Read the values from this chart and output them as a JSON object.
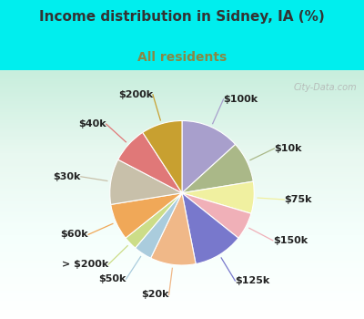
{
  "title": "Income distribution in Sidney, IA (%)",
  "subtitle": "All residents",
  "title_color": "#333333",
  "subtitle_color": "#888844",
  "background_cyan": "#00EEEE",
  "background_pie": "#d8f0e8",
  "watermark": "City-Data.com",
  "slices": [
    {
      "label": "$100k",
      "value": 13,
      "color": "#a89fcc"
    },
    {
      "label": "$10k",
      "value": 9,
      "color": "#aab888"
    },
    {
      "label": "$75k",
      "value": 7,
      "color": "#f0f0a0"
    },
    {
      "label": "$150k",
      "value": 6,
      "color": "#f0b0b8"
    },
    {
      "label": "$125k",
      "value": 11,
      "color": "#7878cc"
    },
    {
      "label": "$20k",
      "value": 10,
      "color": "#f0b888"
    },
    {
      "label": "$50k",
      "value": 4,
      "color": "#aaccdd"
    },
    {
      "label": "> $200k",
      "value": 3,
      "color": "#ccdd88"
    },
    {
      "label": "$60k",
      "value": 8,
      "color": "#f0a858"
    },
    {
      "label": "$30k",
      "value": 10,
      "color": "#c8c0aa"
    },
    {
      "label": "$40k",
      "value": 8,
      "color": "#e07878"
    },
    {
      "label": "$200k",
      "value": 9,
      "color": "#c8a030"
    }
  ],
  "title_fontsize": 11,
  "subtitle_fontsize": 10,
  "label_fontsize": 8
}
